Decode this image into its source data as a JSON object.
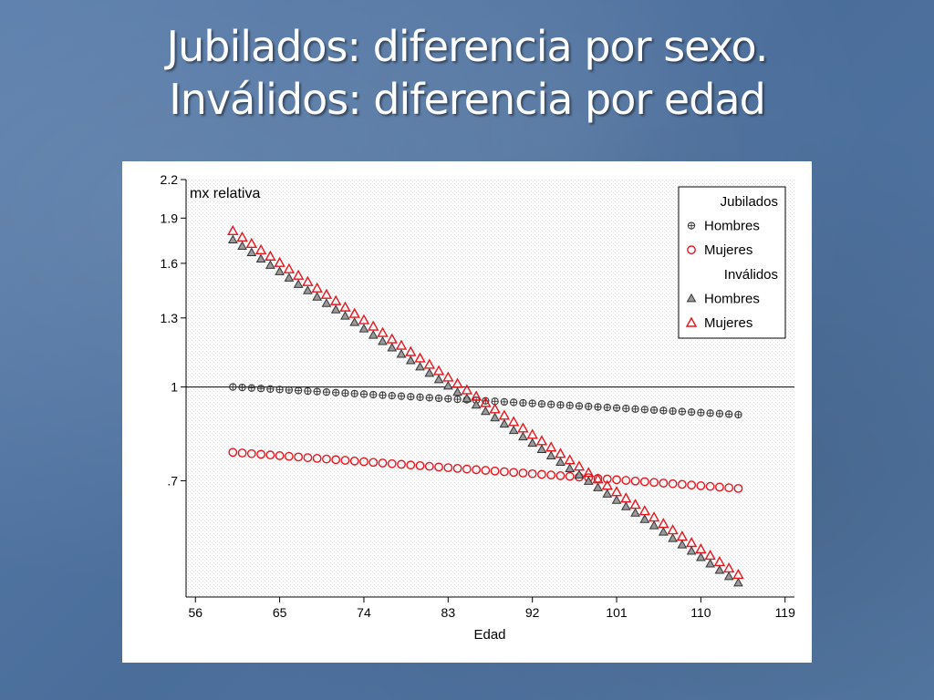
{
  "slide": {
    "title_line1": "Jubilados: diferencia por sexo.",
    "title_line2": "Inválidos: diferencia por edad"
  },
  "chart_data": {
    "type": "scatter",
    "ylabel": "mx relativa",
    "xlabel": "Edad",
    "x_ticks": [
      56,
      65,
      74,
      83,
      92,
      101,
      110,
      119
    ],
    "y_ticks": [
      {
        "value": 2.2,
        "label": "2.2"
      },
      {
        "value": 1.9,
        "label": "1.9"
      },
      {
        "value": 1.6,
        "label": "1.6"
      },
      {
        "value": 1.3,
        "label": "1.3"
      },
      {
        "value": 1.0,
        "label": "1"
      },
      {
        "value": 0.7,
        "label": ".7"
      }
    ],
    "y_scale": "log",
    "xlim": [
      55,
      120
    ],
    "ylim": [
      0.45,
      2.2
    ],
    "reference_line": 1,
    "grid": true,
    "legend": {
      "placement": "top-right",
      "groups": [
        {
          "title": "Jubilados",
          "series": [
            0,
            1
          ]
        },
        {
          "title": "Inválidos",
          "series": [
            2,
            3
          ]
        }
      ]
    },
    "series": [
      {
        "name": "Hombres",
        "group": "Jubilados",
        "marker": "circle-plus",
        "color": "#333333",
        "x_start": 60,
        "x_end": 114,
        "y_start": 1.0,
        "y_end": 0.9
      },
      {
        "name": "Mujeres",
        "group": "Jubilados",
        "marker": "circle",
        "color": "#e8141b",
        "x_start": 60,
        "x_end": 114,
        "y_start": 0.78,
        "y_end": 0.68
      },
      {
        "name": "Hombres",
        "group": "Inválidos",
        "marker": "triangle-filled",
        "color": "#333333",
        "x_start": 60,
        "x_end": 114,
        "y_start": 1.75,
        "y_end": 0.475
      },
      {
        "name": "Mujeres",
        "group": "Inválidos",
        "marker": "triangle",
        "color": "#e8141b",
        "x_start": 60,
        "x_end": 114,
        "y_start": 1.81,
        "y_end": 0.49
      }
    ]
  }
}
